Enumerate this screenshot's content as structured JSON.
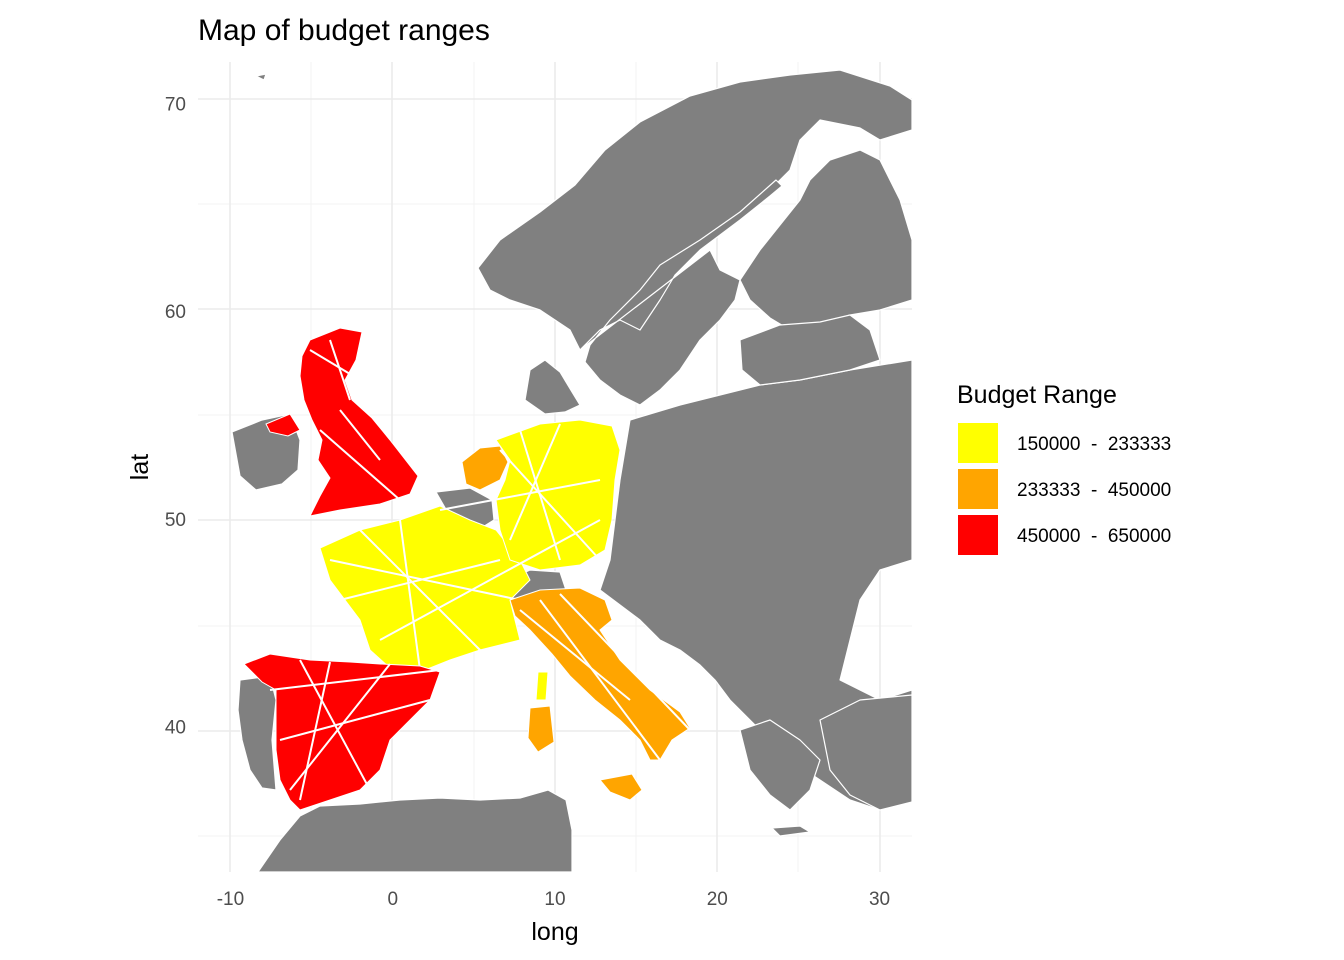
{
  "title": "Map of budget ranges",
  "axes": {
    "x": {
      "label": "long",
      "ticks": [
        -10,
        0,
        10,
        20,
        30
      ],
      "range": [
        -12,
        32
      ]
    },
    "y": {
      "label": "lat",
      "ticks": [
        40,
        50,
        60,
        70
      ],
      "range": [
        33,
        72
      ]
    }
  },
  "legend": {
    "title": "Budget Range",
    "entries": [
      {
        "label": "150000  -  233333",
        "color": "#ffff00"
      },
      {
        "label": "233333  -  450000",
        "color": "#ffa500"
      },
      {
        "label": "450000  -  650000",
        "color": "#ff0000"
      }
    ]
  },
  "map": {
    "base_color": "#808080",
    "border_color": "#ffffff",
    "regions": [
      {
        "name": "United Kingdom",
        "range": "450000  -  650000"
      },
      {
        "name": "Spain",
        "range": "450000  -  650000"
      },
      {
        "name": "France",
        "range": "150000  -  233333"
      },
      {
        "name": "Germany",
        "range": "150000  -  233333"
      },
      {
        "name": "Netherlands",
        "range": "233333  -  450000"
      },
      {
        "name": "Italy",
        "range": "233333  -  450000"
      }
    ]
  }
}
